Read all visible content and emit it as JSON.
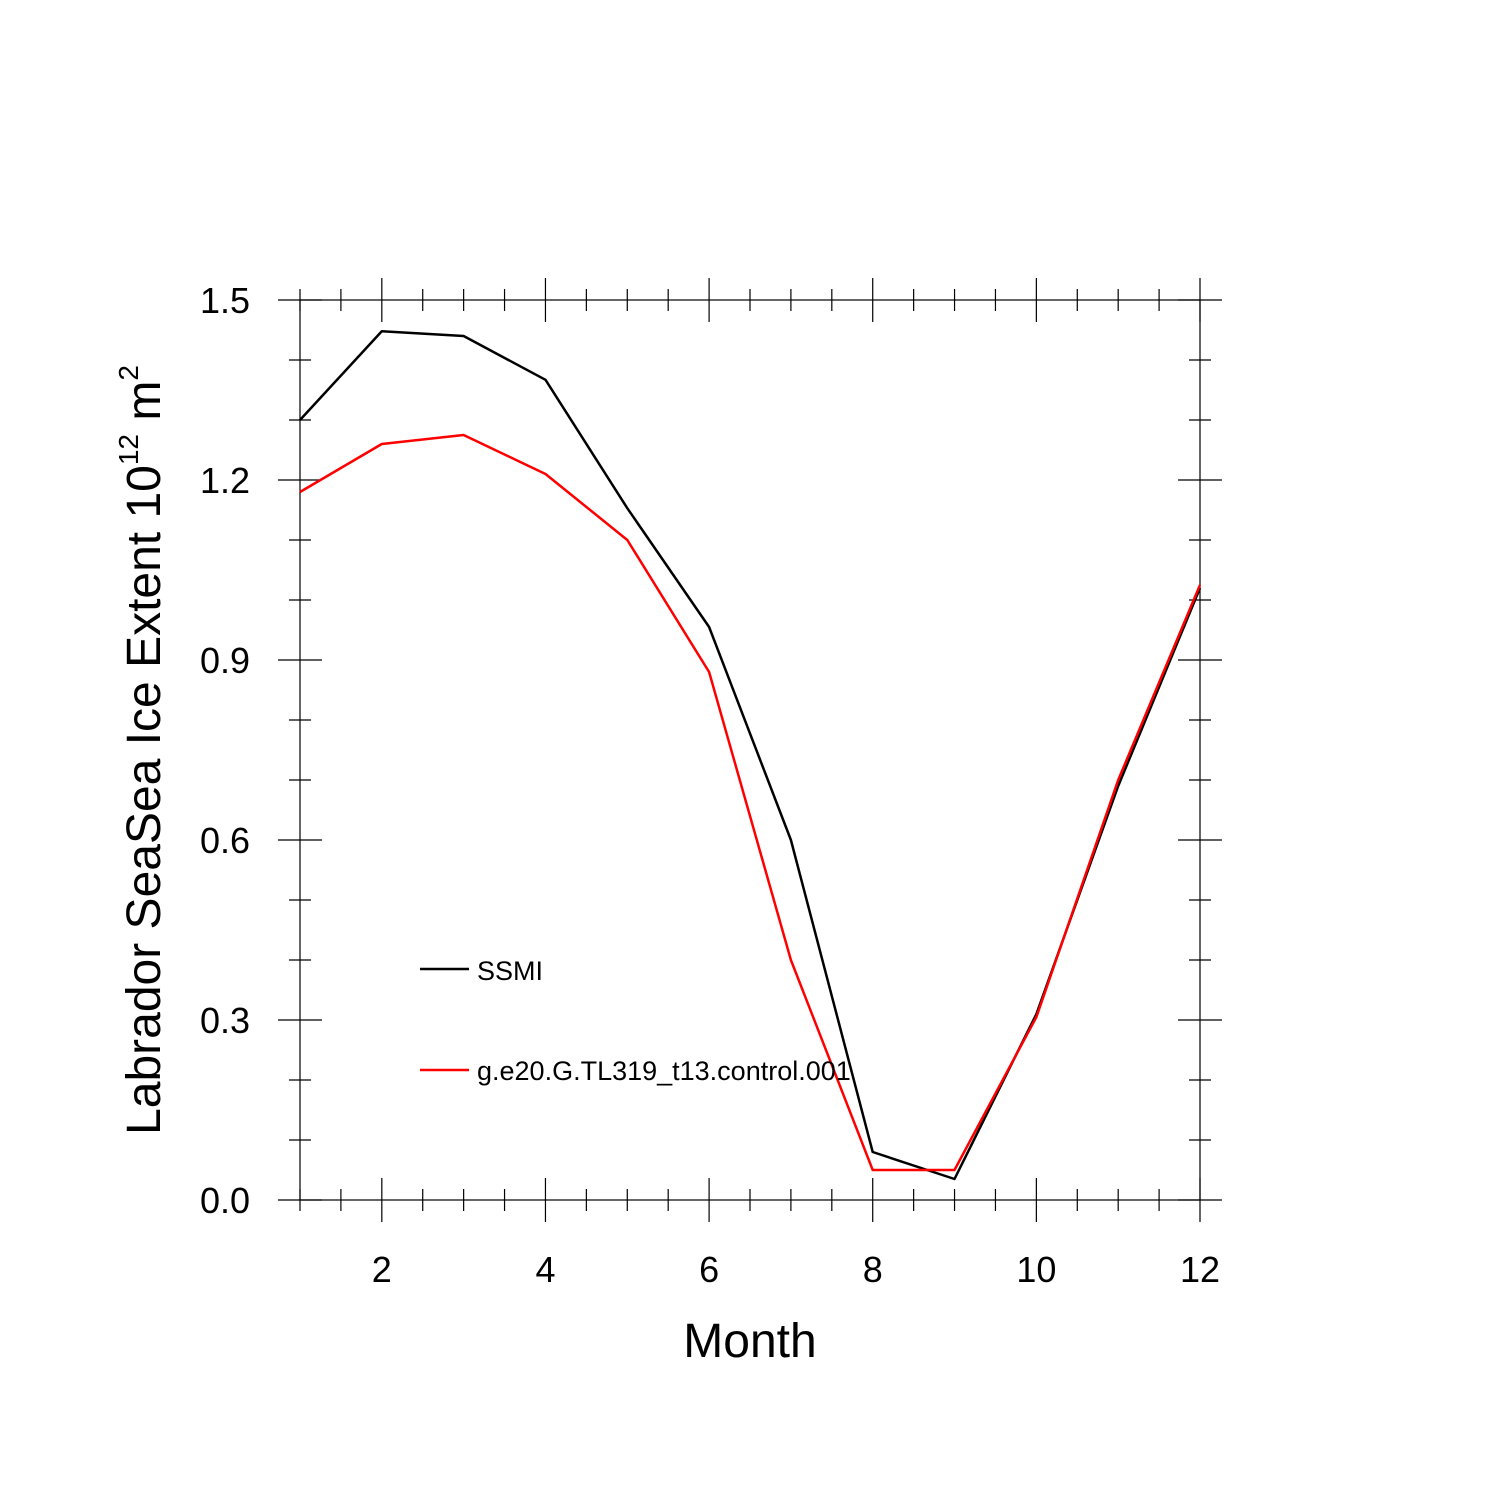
{
  "chart_data": {
    "type": "line",
    "xlabel": "Month",
    "ylabel": {
      "prefix": "Labrador SeaSea Ice Extent 10",
      "superscript_1": "12",
      "middle": " m",
      "superscript_2": "2"
    },
    "xlim": [
      1,
      12
    ],
    "ylim": [
      0,
      1.5
    ],
    "xticks": [
      2,
      4,
      6,
      8,
      10,
      12
    ],
    "yticks": [
      "0.0",
      "0.3",
      "0.6",
      "0.9",
      "1.2",
      "1.5"
    ],
    "grid": false,
    "legend_position": "lower-left",
    "x": [
      1,
      2,
      3,
      4,
      5,
      6,
      7,
      8,
      9,
      10,
      11,
      12
    ],
    "series": [
      {
        "name": "SSMI",
        "color": "#000000",
        "values": [
          1.3,
          1.448,
          1.44,
          1.367,
          1.153,
          0.955,
          0.6,
          0.08,
          0.035,
          0.31,
          0.69,
          1.02
        ]
      },
      {
        "name": "g.e20.G.TL319_t13.control.001",
        "color": "#ff0000",
        "values": [
          1.18,
          1.26,
          1.275,
          1.21,
          1.1,
          0.88,
          0.4,
          0.05,
          0.05,
          0.305,
          0.7,
          1.025
        ]
      }
    ]
  }
}
